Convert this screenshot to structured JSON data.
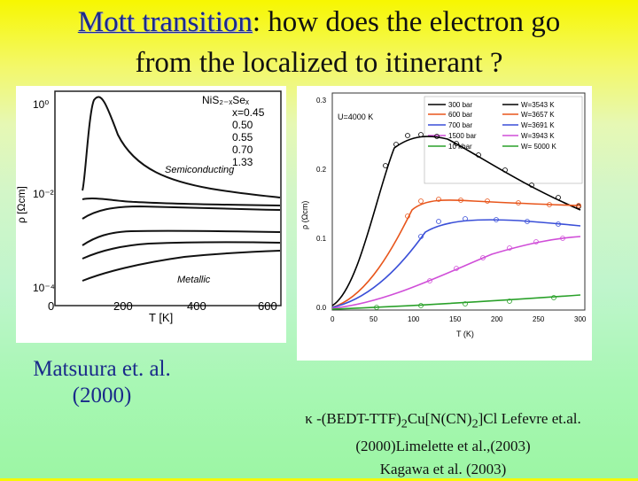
{
  "title": {
    "highlight": "Mott transition",
    "rest_line1": ": how does the electron go",
    "line2": "from the localized to  itinerant ?"
  },
  "left_figure": {
    "ylabel": "ρ [Ωcm]",
    "xlabel": "T [K]",
    "x_ticks": [
      "0",
      "200",
      "400",
      "600"
    ],
    "y_ticks": [
      "10⁰",
      "10⁻²",
      "10⁻⁴"
    ],
    "legend": [
      "NiS₂₋ₓSeₓ",
      "x=0.45",
      "0.50",
      "0.55",
      "0.70",
      "1.33"
    ],
    "annotation_semiconducting": "Semiconducting",
    "annotation_metallic": "Metallic"
  },
  "right_figure": {
    "ylabel": "ρ (Ωcm)",
    "xlabel": "T (K)",
    "x_ticks": [
      "0",
      "50",
      "100",
      "150",
      "200",
      "250",
      "300"
    ],
    "y_ticks": [
      "0.0",
      "0.1",
      "0.2",
      "0.3"
    ],
    "u_label": "U=4000 K",
    "legend_left": [
      "300 bar",
      "600 bar",
      "700 bar",
      "1500 bar",
      "10 kbar"
    ],
    "legend_right": [
      "W=3543 K",
      "W=3657 K",
      "W=3691 K",
      "W=3943 K",
      "W= 5000 K"
    ],
    "colors": [
      "#000000",
      "#e8561c",
      "#3a4fd8",
      "#d04ed8",
      "#2aa12a"
    ]
  },
  "caption_left": "Matsuura et. al.(2000)",
  "caption_right": {
    "line1_kappa": "κ",
    "line1_a": " -(BEDT-TTF)",
    "sub1": "2",
    "line1_b": "Cu[N(CN)",
    "sub2": "2",
    "line1_c": "]Cl  Lefevre et.al.",
    "line2": "(2000)Limelette et al.,(2003)",
    "line3": "Kagawa et al.  (2003)"
  }
}
